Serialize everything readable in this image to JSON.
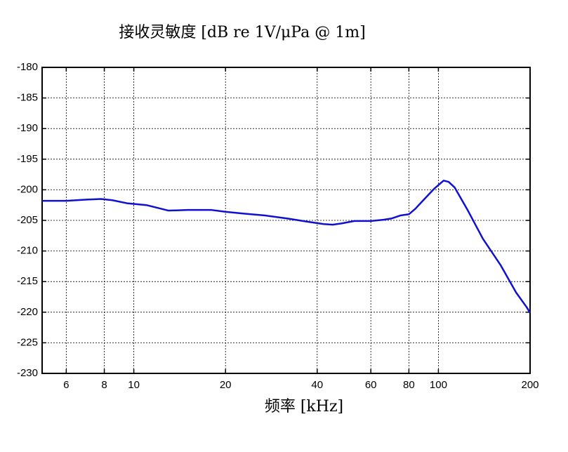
{
  "chart_data": {
    "type": "line",
    "title": "接收灵敏度 [dB re 1V/μPa @ 1m]",
    "x_label": "频率 [kHz]",
    "x": [
      5,
      6,
      7,
      7.8,
      8.5,
      9.5,
      11,
      13,
      15,
      18,
      20,
      23,
      27,
      32,
      37,
      42,
      45,
      48,
      53,
      60,
      66,
      70,
      75,
      80,
      84,
      90,
      97,
      104,
      108,
      113,
      125,
      140,
      160,
      180,
      195,
      200
    ],
    "series": [
      {
        "name": "sensitivity",
        "color": "#1010d0",
        "values": [
          -201.8,
          -201.8,
          -201.6,
          -201.5,
          -201.7,
          -202.2,
          -202.5,
          -203.4,
          -203.3,
          -203.3,
          -203.6,
          -203.9,
          -204.2,
          -204.7,
          -205.2,
          -205.6,
          -205.7,
          -205.5,
          -205.1,
          -205.1,
          -204.9,
          -204.7,
          -204.2,
          -204.0,
          -203.1,
          -201.5,
          -199.8,
          -198.5,
          -198.7,
          -199.6,
          -203.4,
          -208.0,
          -212.3,
          -216.8,
          -219.2,
          -220.1
        ]
      }
    ],
    "xlim": [
      5,
      200
    ],
    "xticks": [
      6,
      8,
      10,
      20,
      40,
      60,
      80,
      100,
      200
    ],
    "x_log": true,
    "ylim": [
      -230,
      -180
    ],
    "yticks": [
      -230,
      -225,
      -220,
      -215,
      -210,
      -205,
      -200,
      -195,
      -190,
      -185,
      -180
    ],
    "grid": true
  }
}
